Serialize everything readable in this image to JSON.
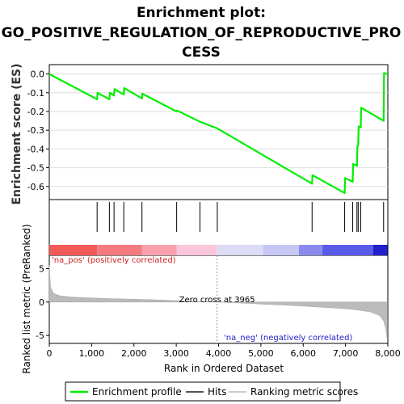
{
  "chart_data": {
    "type": "line",
    "title_lines": [
      "Enrichment plot:",
      "GO_POSITIVE_REGULATION_OF_REPRODUCTIVE_PRO",
      "CESS"
    ],
    "es_panel": {
      "ylabel": "Enrichment score (ES)",
      "ylim": [
        -0.67,
        0.05
      ],
      "yticks": [
        "0.0",
        "-0.1",
        "-0.2",
        "-0.3",
        "-0.4",
        "-0.5",
        "-0.6"
      ],
      "ytick_values": [
        0.0,
        -0.1,
        -0.2,
        -0.3,
        -0.4,
        -0.5,
        -0.6
      ],
      "series": [
        {
          "name": "Enrichment profile",
          "color": "#00ee00",
          "x": [
            0,
            1130,
            1140,
            1420,
            1430,
            1530,
            1540,
            1760,
            1770,
            2190,
            2200,
            3010,
            3020,
            3560,
            3970,
            6210,
            6220,
            6980,
            6990,
            7170,
            7180,
            7270,
            7280,
            7300,
            7310,
            7360,
            7370,
            7900,
            7910,
            7990
          ],
          "y": [
            0.0,
            -0.135,
            -0.1,
            -0.135,
            -0.1,
            -0.115,
            -0.08,
            -0.11,
            -0.075,
            -0.13,
            -0.105,
            -0.2,
            -0.195,
            -0.255,
            -0.29,
            -0.585,
            -0.54,
            -0.635,
            -0.555,
            -0.575,
            -0.48,
            -0.49,
            -0.39,
            -0.38,
            -0.28,
            -0.285,
            -0.18,
            -0.25,
            0.005,
            0.0
          ]
        }
      ]
    },
    "hits_panel": {
      "name": "Hits",
      "color": "#000000",
      "positions": [
        1130,
        1420,
        1530,
        1760,
        2190,
        3010,
        3560,
        3970,
        6210,
        6980,
        7170,
        7270,
        7300,
        7360,
        7900
      ]
    },
    "ranking_panel": {
      "ylabel": "Ranked list metric (PreRanked)",
      "ylim": [
        -6.2,
        7.0
      ],
      "yticks": [
        "5",
        "0",
        "-5"
      ],
      "ytick_values": [
        5,
        0,
        -5
      ],
      "zero_cross_label": "Zero cross at 3965",
      "zero_cross": 3965,
      "pos_label": "'na_pos' (positively correlated)",
      "neg_label": "'na_neg' (negatively correlated)",
      "series_name": "Ranking metric scores",
      "color": "#bbbbbb",
      "x": [
        0,
        30,
        100,
        250,
        500,
        1000,
        1500,
        2000,
        2500,
        3000,
        3500,
        3965,
        4500,
        5000,
        5500,
        6000,
        6500,
        7000,
        7300,
        7600,
        7800,
        7900,
        7950,
        7990
      ],
      "y": [
        5.5,
        2.2,
        1.3,
        0.95,
        0.75,
        0.6,
        0.5,
        0.42,
        0.33,
        0.22,
        0.1,
        0.0,
        -0.15,
        -0.3,
        -0.45,
        -0.6,
        -0.8,
        -1.0,
        -1.2,
        -1.5,
        -2.0,
        -2.8,
        -4.0,
        -5.8
      ]
    },
    "xaxis": {
      "label": "Rank in Ordered Dataset",
      "xlim": [
        0,
        8000
      ],
      "ticks": [
        "0",
        "1,000",
        "2,000",
        "3,000",
        "4,000",
        "5,000",
        "6,000",
        "7,000",
        "8,000"
      ],
      "tick_values": [
        0,
        1000,
        2000,
        3000,
        4000,
        5000,
        6000,
        7000,
        8000
      ]
    },
    "color_bar": {
      "segments": [
        {
          "from": 0,
          "to": 1130,
          "color": "#f25a5a"
        },
        {
          "from": 1130,
          "to": 2190,
          "color": "#f57a80"
        },
        {
          "from": 2190,
          "to": 3010,
          "color": "#f8a0ae"
        },
        {
          "from": 3010,
          "to": 3965,
          "color": "#fac6dc"
        },
        {
          "from": 3965,
          "to": 5050,
          "color": "#dcdcf6"
        },
        {
          "from": 5050,
          "to": 5900,
          "color": "#c8c8f4"
        },
        {
          "from": 5900,
          "to": 6450,
          "color": "#8a8aee"
        },
        {
          "from": 6450,
          "to": 7650,
          "color": "#5a5ae8"
        },
        {
          "from": 7650,
          "to": 7990,
          "color": "#2020cc"
        }
      ]
    },
    "legend": [
      {
        "label": "Enrichment profile",
        "color": "#00ee00"
      },
      {
        "label": "Hits",
        "color": "#555555"
      },
      {
        "label": "Ranking metric scores",
        "color": "#cccccc"
      }
    ]
  }
}
